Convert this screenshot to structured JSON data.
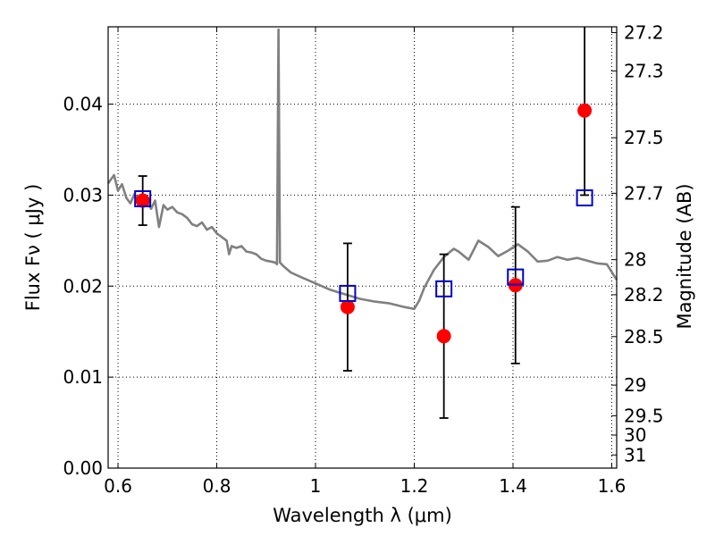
{
  "chart_data": {
    "type": "scatter",
    "xlabel": "Wavelength  λ (μm)",
    "ylabel": "Flux  Fν  ( μJy )",
    "ylabel_right": "Magnitude (AB)",
    "xlim": [
      0.58,
      1.61
    ],
    "ylim": [
      0.0,
      0.0485
    ],
    "grid": true,
    "x_ticks": [
      {
        "value": 0.6,
        "label": "0.6"
      },
      {
        "value": 0.8,
        "label": "0.8"
      },
      {
        "value": 1.0,
        "label": "1"
      },
      {
        "value": 1.2,
        "label": "1.2"
      },
      {
        "value": 1.4,
        "label": "1.4"
      },
      {
        "value": 1.6,
        "label": "1.6"
      }
    ],
    "y_ticks": [
      {
        "value": 0.0,
        "label": "0.00"
      },
      {
        "value": 0.01,
        "label": "0.01"
      },
      {
        "value": 0.02,
        "label": "0.02"
      },
      {
        "value": 0.03,
        "label": "0.03"
      },
      {
        "value": 0.04,
        "label": "0.04"
      }
    ],
    "mag_ticks": [
      {
        "mag": 27.2,
        "label": "27.2"
      },
      {
        "mag": 27.3,
        "label": "27.3"
      },
      {
        "mag": 27.5,
        "label": "27.5"
      },
      {
        "mag": 27.7,
        "label": "27.7"
      },
      {
        "mag": 28.0,
        "label": "28"
      },
      {
        "mag": 28.2,
        "label": "28.2"
      },
      {
        "mag": 28.5,
        "label": "28.5"
      },
      {
        "mag": 29.0,
        "label": "29"
      },
      {
        "mag": 29.5,
        "label": "29.5"
      },
      {
        "mag": 30.0,
        "label": "30"
      },
      {
        "mag": 31.0,
        "label": "31"
      }
    ],
    "colors": {
      "model": "#808080",
      "observed": "#ff0000",
      "model_photometry": "#0000cc",
      "errorbar": "#000000"
    },
    "model_sed": {
      "x": [
        0.58,
        0.592,
        0.6,
        0.608,
        0.617,
        0.625,
        0.633,
        0.642,
        0.65,
        0.658,
        0.667,
        0.675,
        0.683,
        0.692,
        0.7,
        0.71,
        0.72,
        0.73,
        0.74,
        0.75,
        0.76,
        0.77,
        0.78,
        0.79,
        0.8,
        0.81,
        0.82,
        0.825,
        0.83,
        0.84,
        0.85,
        0.86,
        0.87,
        0.88,
        0.89,
        0.9,
        0.91,
        0.918,
        0.922,
        0.925,
        0.928,
        0.935,
        0.95,
        0.97,
        1.0,
        1.03,
        1.06,
        1.09,
        1.12,
        1.15,
        1.18,
        1.2,
        1.21,
        1.22,
        1.24,
        1.26,
        1.28,
        1.29,
        1.31,
        1.33,
        1.35,
        1.37,
        1.39,
        1.41,
        1.43,
        1.45,
        1.47,
        1.49,
        1.51,
        1.53,
        1.55,
        1.57,
        1.59,
        1.61
      ],
      "y": [
        0.0313,
        0.0322,
        0.0305,
        0.0312,
        0.0297,
        0.0291,
        0.0301,
        0.0295,
        0.0298,
        0.0293,
        0.0285,
        0.0294,
        0.0265,
        0.0289,
        0.0284,
        0.0287,
        0.0281,
        0.0279,
        0.0275,
        0.0268,
        0.0266,
        0.027,
        0.0262,
        0.0265,
        0.0258,
        0.0254,
        0.025,
        0.0235,
        0.0244,
        0.0242,
        0.0244,
        0.0238,
        0.0237,
        0.0235,
        0.023,
        0.0228,
        0.0227,
        0.0226,
        0.0224,
        0.0482,
        0.0226,
        0.0222,
        0.0215,
        0.021,
        0.0203,
        0.0196,
        0.0191,
        0.0186,
        0.0183,
        0.0181,
        0.0177,
        0.0175,
        0.0184,
        0.0198,
        0.0218,
        0.0232,
        0.0241,
        0.0238,
        0.0229,
        0.025,
        0.0243,
        0.0233,
        0.0239,
        0.0246,
        0.0238,
        0.0227,
        0.0228,
        0.0232,
        0.0229,
        0.0231,
        0.0228,
        0.0225,
        0.0224,
        0.0207
      ]
    },
    "observed": [
      {
        "x": 0.65,
        "y": 0.0294,
        "err": 0.0027
      },
      {
        "x": 1.065,
        "y": 0.0177,
        "err": 0.007
      },
      {
        "x": 1.26,
        "y": 0.0145,
        "err": 0.009
      },
      {
        "x": 1.405,
        "y": 0.0201,
        "err": 0.0086
      },
      {
        "x": 1.545,
        "y": 0.0393,
        "err": 0.0093
      }
    ],
    "model_photometry": [
      {
        "x": 0.65,
        "y": 0.0296
      },
      {
        "x": 1.065,
        "y": 0.0192
      },
      {
        "x": 1.26,
        "y": 0.0197
      },
      {
        "x": 1.405,
        "y": 0.021
      },
      {
        "x": 1.545,
        "y": 0.0297
      }
    ]
  }
}
